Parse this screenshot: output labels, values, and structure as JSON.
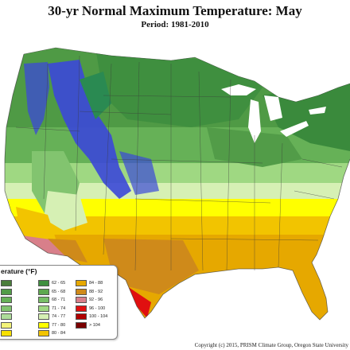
{
  "header": {
    "title": "30-yr Normal Maximum Temperature: May",
    "subtitle": "Period: 1981-2010"
  },
  "legend": {
    "title": "erature (°F)",
    "items": [
      {
        "label": "",
        "color": "#4a7d3a"
      },
      {
        "label": "62 - 65",
        "color": "#3f8f3f"
      },
      {
        "label": "84 - 88",
        "color": "#e6a800"
      },
      {
        "label": "",
        "color": "#529c48"
      },
      {
        "label": "65 - 68",
        "color": "#5ea84f"
      },
      {
        "label": "88 - 92",
        "color": "#cf8a1a"
      },
      {
        "label": "",
        "color": "#66b157"
      },
      {
        "label": "68 - 71",
        "color": "#77be66"
      },
      {
        "label": "92 - 96",
        "color": "#d87f8a"
      },
      {
        "label": "",
        "color": "#82c46f"
      },
      {
        "label": "71 - 74",
        "color": "#9fd882"
      },
      {
        "label": "96 - 100",
        "color": "#e01010"
      },
      {
        "label": "",
        "color": "#aedc9a"
      },
      {
        "label": "74 - 77",
        "color": "#d6f0b4"
      },
      {
        "label": "100 - 104",
        "color": "#b00000"
      },
      {
        "label": "",
        "color": "#f3f37a"
      },
      {
        "label": "77 - 80",
        "color": "#ffff00"
      },
      {
        "label": "> 104",
        "color": "#7a0000"
      },
      {
        "label": "",
        "color": "#f7e000"
      },
      {
        "label": "80 - 84",
        "color": "#f2c400"
      },
      {
        "label": "",
        "color": "#ffffff"
      }
    ]
  },
  "footer": {
    "copyright": "Copyright (c) 2015, PRISM Climate Group, Oregon State University"
  },
  "colors": {
    "cool_mountain": "#3b48d8",
    "dark_green": "#3f8f3f",
    "light_green": "#d6f0b4",
    "yellow": "#ffff00",
    "orange": "#e6a800",
    "brown": "#cf8a1a",
    "red": "#e01010",
    "pink": "#d87f8a",
    "lake": "#ffffff"
  }
}
